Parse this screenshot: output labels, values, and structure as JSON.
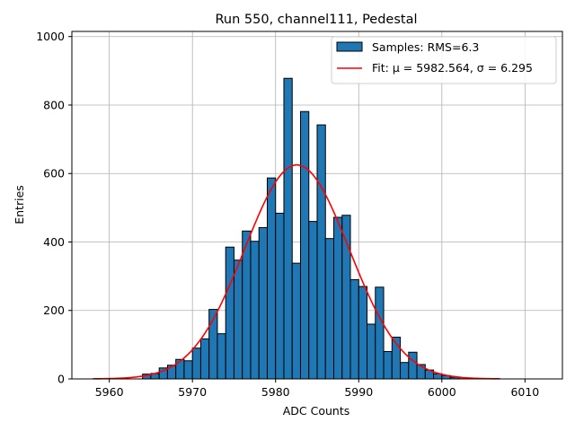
{
  "chart_data": {
    "type": "bar",
    "title": "Run 550, channel111, Pedestal",
    "xlabel": "ADC Counts",
    "ylabel": "Entries",
    "xlim": [
      5955.5,
      6014.5
    ],
    "ylim": [
      0,
      1015
    ],
    "xticks": [
      5960,
      5970,
      5980,
      5990,
      6000,
      6010
    ],
    "yticks": [
      0,
      200,
      400,
      600,
      800,
      1000
    ],
    "grid": true,
    "legend_position": "top-right",
    "histogram": {
      "name": "Samples: RMS=6.3",
      "color": "#1f77b4",
      "edgecolor": "#000000",
      "bin_width": 1,
      "bins": [
        {
          "left": 5964,
          "value": 14
        },
        {
          "left": 5965,
          "value": 16
        },
        {
          "left": 5966,
          "value": 32
        },
        {
          "left": 5967,
          "value": 40
        },
        {
          "left": 5968,
          "value": 57
        },
        {
          "left": 5969,
          "value": 53
        },
        {
          "left": 5970,
          "value": 90
        },
        {
          "left": 5971,
          "value": 117
        },
        {
          "left": 5972,
          "value": 203
        },
        {
          "left": 5973,
          "value": 132
        },
        {
          "left": 5974,
          "value": 385
        },
        {
          "left": 5975,
          "value": 347
        },
        {
          "left": 5976,
          "value": 432
        },
        {
          "left": 5977,
          "value": 402
        },
        {
          "left": 5978,
          "value": 442
        },
        {
          "left": 5979,
          "value": 587
        },
        {
          "left": 5980,
          "value": 484
        },
        {
          "left": 5981,
          "value": 878
        },
        {
          "left": 5982,
          "value": 338
        },
        {
          "left": 5983,
          "value": 781
        },
        {
          "left": 5984,
          "value": 460
        },
        {
          "left": 5985,
          "value": 742
        },
        {
          "left": 5986,
          "value": 410
        },
        {
          "left": 5987,
          "value": 472
        },
        {
          "left": 5988,
          "value": 478
        },
        {
          "left": 5989,
          "value": 290
        },
        {
          "left": 5990,
          "value": 270
        },
        {
          "left": 5991,
          "value": 160
        },
        {
          "left": 5992,
          "value": 268
        },
        {
          "left": 5993,
          "value": 80
        },
        {
          "left": 5994,
          "value": 122
        },
        {
          "left": 5995,
          "value": 48
        },
        {
          "left": 5996,
          "value": 78
        },
        {
          "left": 5997,
          "value": 42
        },
        {
          "left": 5998,
          "value": 26
        },
        {
          "left": 5999,
          "value": 15
        },
        {
          "left": 6000,
          "value": 10
        },
        {
          "left": 6001,
          "value": 5
        },
        {
          "left": 6002,
          "value": 4
        }
      ]
    },
    "fit": {
      "name": "Fit: μ = 5982.564, σ = 6.295",
      "color": "#ff0000",
      "mu": 5982.564,
      "sigma": 6.295,
      "amplitude": 625,
      "x_range": [
        5958,
        6007
      ]
    }
  }
}
